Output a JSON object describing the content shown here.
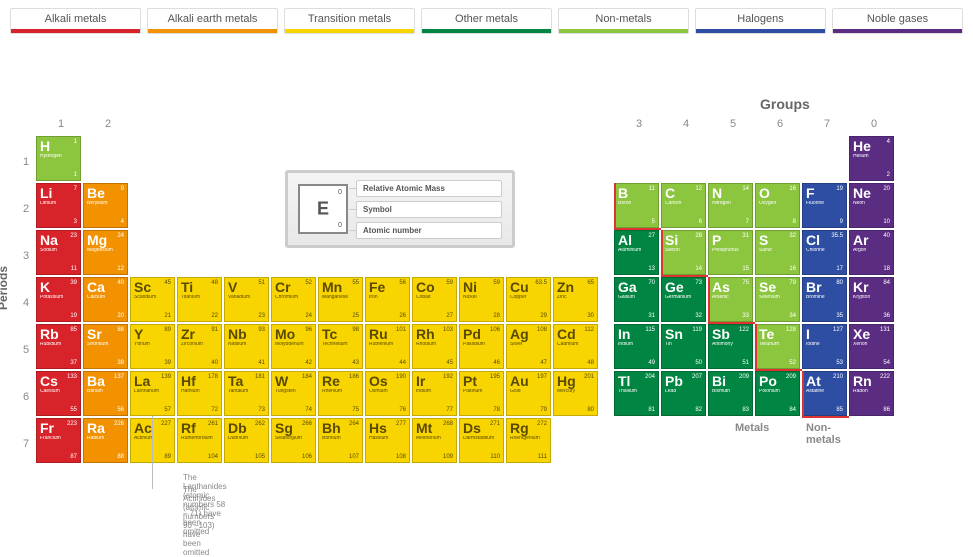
{
  "layout": {
    "cell": 47,
    "gap": 3,
    "startX": 36,
    "startY": 96,
    "rightBlockStart": 12,
    "legendHeight": 42
  },
  "colors": {
    "alkali": "#d8232a",
    "alkaliearth": "#f39200",
    "transition": "#f8d500",
    "other": "#008542",
    "nonmetal": "#8cc63f",
    "halogen": "#2d4ea2",
    "noble": "#5b2d82",
    "bg": "#ffffff",
    "stair": "#d8232a",
    "text": "#666666"
  },
  "legend": [
    {
      "label": "Alkali metals",
      "color": "#d8232a"
    },
    {
      "label": "Alkali earth metals",
      "color": "#f39200"
    },
    {
      "label": "Transition metals",
      "color": "#f8d500"
    },
    {
      "label": "Other metals",
      "color": "#008542"
    },
    {
      "label": "Non-metals",
      "color": "#8cc63f"
    },
    {
      "label": "Halogens",
      "color": "#2d4ea2"
    },
    {
      "label": "Noble gases",
      "color": "#5b2d82"
    }
  ],
  "labels": {
    "groups": "Groups",
    "periods": "Periods",
    "metals": "Metals",
    "nonmetals": "Non-metals"
  },
  "key": {
    "symbol": "E",
    "mass": "0",
    "num": "0",
    "labels": [
      "Relative Atomic Mass",
      "Symbol",
      "Atomic number"
    ]
  },
  "group_numbers": [
    {
      "n": "1",
      "col": 0
    },
    {
      "n": "2",
      "col": 1
    },
    {
      "n": "3",
      "col": 12
    },
    {
      "n": "4",
      "col": 13
    },
    {
      "n": "5",
      "col": 14
    },
    {
      "n": "6",
      "col": 15
    },
    {
      "n": "7",
      "col": 16
    },
    {
      "n": "0",
      "col": 17
    }
  ],
  "period_numbers": [
    "1",
    "2",
    "3",
    "4",
    "5",
    "6",
    "7"
  ],
  "omitted": [
    "The Lanthanides (atomic numbers 58 – 71) have been omitted",
    "The Actinides (atomic numbers 90 –103) have been omitted"
  ],
  "elements": [
    {
      "s": "H",
      "n": "Hydrogen",
      "m": "1",
      "z": "1",
      "r": 0,
      "c": 0,
      "cat": "nonmetal"
    },
    {
      "s": "He",
      "n": "Helium",
      "m": "4",
      "z": "2",
      "r": 0,
      "c": 17,
      "cat": "noble"
    },
    {
      "s": "Li",
      "n": "Lithium",
      "m": "7",
      "z": "3",
      "r": 1,
      "c": 0,
      "cat": "alkali"
    },
    {
      "s": "Be",
      "n": "Beryllium",
      "m": "9",
      "z": "4",
      "r": 1,
      "c": 1,
      "cat": "alkaliearth"
    },
    {
      "s": "B",
      "n": "Boron",
      "m": "11",
      "z": "5",
      "r": 1,
      "c": 12,
      "cat": "nonmetal"
    },
    {
      "s": "C",
      "n": "Carbon",
      "m": "12",
      "z": "6",
      "r": 1,
      "c": 13,
      "cat": "nonmetal"
    },
    {
      "s": "N",
      "n": "Nitrogen",
      "m": "14",
      "z": "7",
      "r": 1,
      "c": 14,
      "cat": "nonmetal"
    },
    {
      "s": "O",
      "n": "Oxygen",
      "m": "16",
      "z": "8",
      "r": 1,
      "c": 15,
      "cat": "nonmetal"
    },
    {
      "s": "F",
      "n": "Fluorine",
      "m": "19",
      "z": "9",
      "r": 1,
      "c": 16,
      "cat": "halogen"
    },
    {
      "s": "Ne",
      "n": "Neon",
      "m": "20",
      "z": "10",
      "r": 1,
      "c": 17,
      "cat": "noble"
    },
    {
      "s": "Na",
      "n": "Sodium",
      "m": "23",
      "z": "11",
      "r": 2,
      "c": 0,
      "cat": "alkali"
    },
    {
      "s": "Mg",
      "n": "Magnesium",
      "m": "24",
      "z": "12",
      "r": 2,
      "c": 1,
      "cat": "alkaliearth"
    },
    {
      "s": "Al",
      "n": "Aluminium",
      "m": "27",
      "z": "13",
      "r": 2,
      "c": 12,
      "cat": "other"
    },
    {
      "s": "Si",
      "n": "Silicon",
      "m": "28",
      "z": "14",
      "r": 2,
      "c": 13,
      "cat": "nonmetal"
    },
    {
      "s": "P",
      "n": "Phosphorus",
      "m": "31",
      "z": "15",
      "r": 2,
      "c": 14,
      "cat": "nonmetal"
    },
    {
      "s": "S",
      "n": "Sulfur",
      "m": "32",
      "z": "16",
      "r": 2,
      "c": 15,
      "cat": "nonmetal"
    },
    {
      "s": "Cl",
      "n": "Chlorine",
      "m": "35.5",
      "z": "17",
      "r": 2,
      "c": 16,
      "cat": "halogen"
    },
    {
      "s": "Ar",
      "n": "Argon",
      "m": "40",
      "z": "18",
      "r": 2,
      "c": 17,
      "cat": "noble"
    },
    {
      "s": "K",
      "n": "Potassium",
      "m": "39",
      "z": "19",
      "r": 3,
      "c": 0,
      "cat": "alkali"
    },
    {
      "s": "Ca",
      "n": "Calcium",
      "m": "40",
      "z": "20",
      "r": 3,
      "c": 1,
      "cat": "alkaliearth"
    },
    {
      "s": "Sc",
      "n": "Scandium",
      "m": "45",
      "z": "21",
      "r": 3,
      "c": 2,
      "cat": "transition"
    },
    {
      "s": "Ti",
      "n": "Titanium",
      "m": "48",
      "z": "22",
      "r": 3,
      "c": 3,
      "cat": "transition"
    },
    {
      "s": "V",
      "n": "Vanadium",
      "m": "51",
      "z": "23",
      "r": 3,
      "c": 4,
      "cat": "transition"
    },
    {
      "s": "Cr",
      "n": "Chromium",
      "m": "52",
      "z": "24",
      "r": 3,
      "c": 5,
      "cat": "transition"
    },
    {
      "s": "Mn",
      "n": "Manganese",
      "m": "55",
      "z": "25",
      "r": 3,
      "c": 6,
      "cat": "transition"
    },
    {
      "s": "Fe",
      "n": "Iron",
      "m": "56",
      "z": "26",
      "r": 3,
      "c": 7,
      "cat": "transition"
    },
    {
      "s": "Co",
      "n": "Cobalt",
      "m": "59",
      "z": "27",
      "r": 3,
      "c": 8,
      "cat": "transition"
    },
    {
      "s": "Ni",
      "n": "Nickel",
      "m": "59",
      "z": "28",
      "r": 3,
      "c": 9,
      "cat": "transition"
    },
    {
      "s": "Cu",
      "n": "Copper",
      "m": "63.5",
      "z": "29",
      "r": 3,
      "c": 10,
      "cat": "transition"
    },
    {
      "s": "Zn",
      "n": "Zinc",
      "m": "65",
      "z": "30",
      "r": 3,
      "c": 11,
      "cat": "transition"
    },
    {
      "s": "Ga",
      "n": "Gallium",
      "m": "70",
      "z": "31",
      "r": 3,
      "c": 12,
      "cat": "other"
    },
    {
      "s": "Ge",
      "n": "Germanium",
      "m": "73",
      "z": "32",
      "r": 3,
      "c": 13,
      "cat": "other"
    },
    {
      "s": "As",
      "n": "Arsenic",
      "m": "75",
      "z": "33",
      "r": 3,
      "c": 14,
      "cat": "nonmetal"
    },
    {
      "s": "Se",
      "n": "Selenium",
      "m": "79",
      "z": "34",
      "r": 3,
      "c": 15,
      "cat": "nonmetal"
    },
    {
      "s": "Br",
      "n": "Bromine",
      "m": "80",
      "z": "35",
      "r": 3,
      "c": 16,
      "cat": "halogen"
    },
    {
      "s": "Kr",
      "n": "Krypton",
      "m": "84",
      "z": "36",
      "r": 3,
      "c": 17,
      "cat": "noble"
    },
    {
      "s": "Rb",
      "n": "Rubidium",
      "m": "85",
      "z": "37",
      "r": 4,
      "c": 0,
      "cat": "alkali"
    },
    {
      "s": "Sr",
      "n": "Strontium",
      "m": "88",
      "z": "38",
      "r": 4,
      "c": 1,
      "cat": "alkaliearth"
    },
    {
      "s": "Y",
      "n": "Yttrium",
      "m": "89",
      "z": "39",
      "r": 4,
      "c": 2,
      "cat": "transition"
    },
    {
      "s": "Zr",
      "n": "Zirconium",
      "m": "91",
      "z": "40",
      "r": 4,
      "c": 3,
      "cat": "transition"
    },
    {
      "s": "Nb",
      "n": "Niobium",
      "m": "93",
      "z": "41",
      "r": 4,
      "c": 4,
      "cat": "transition"
    },
    {
      "s": "Mo",
      "n": "Molybdenum",
      "m": "96",
      "z": "42",
      "r": 4,
      "c": 5,
      "cat": "transition"
    },
    {
      "s": "Tc",
      "n": "Technetium",
      "m": "98",
      "z": "43",
      "r": 4,
      "c": 6,
      "cat": "transition"
    },
    {
      "s": "Ru",
      "n": "Ruthenium",
      "m": "101",
      "z": "44",
      "r": 4,
      "c": 7,
      "cat": "transition"
    },
    {
      "s": "Rh",
      "n": "Rhodium",
      "m": "103",
      "z": "45",
      "r": 4,
      "c": 8,
      "cat": "transition"
    },
    {
      "s": "Pd",
      "n": "Palladium",
      "m": "106",
      "z": "46",
      "r": 4,
      "c": 9,
      "cat": "transition"
    },
    {
      "s": "Ag",
      "n": "Silver",
      "m": "108",
      "z": "47",
      "r": 4,
      "c": 10,
      "cat": "transition"
    },
    {
      "s": "Cd",
      "n": "Cadmium",
      "m": "112",
      "z": "48",
      "r": 4,
      "c": 11,
      "cat": "transition"
    },
    {
      "s": "In",
      "n": "Indium",
      "m": "115",
      "z": "49",
      "r": 4,
      "c": 12,
      "cat": "other"
    },
    {
      "s": "Sn",
      "n": "Tin",
      "m": "119",
      "z": "50",
      "r": 4,
      "c": 13,
      "cat": "other"
    },
    {
      "s": "Sb",
      "n": "Antimony",
      "m": "122",
      "z": "51",
      "r": 4,
      "c": 14,
      "cat": "other"
    },
    {
      "s": "Te",
      "n": "Tellurium",
      "m": "128",
      "z": "52",
      "r": 4,
      "c": 15,
      "cat": "nonmetal"
    },
    {
      "s": "I",
      "n": "Iodine",
      "m": "127",
      "z": "53",
      "r": 4,
      "c": 16,
      "cat": "halogen"
    },
    {
      "s": "Xe",
      "n": "Xenon",
      "m": "131",
      "z": "54",
      "r": 4,
      "c": 17,
      "cat": "noble"
    },
    {
      "s": "Cs",
      "n": "Caesium",
      "m": "133",
      "z": "55",
      "r": 5,
      "c": 0,
      "cat": "alkali"
    },
    {
      "s": "Ba",
      "n": "Barium",
      "m": "137",
      "z": "56",
      "r": 5,
      "c": 1,
      "cat": "alkaliearth"
    },
    {
      "s": "La",
      "n": "Lanthanum",
      "m": "139",
      "z": "57",
      "r": 5,
      "c": 2,
      "cat": "transition"
    },
    {
      "s": "Hf",
      "n": "Hafnium",
      "m": "178",
      "z": "72",
      "r": 5,
      "c": 3,
      "cat": "transition"
    },
    {
      "s": "Ta",
      "n": "Tantalum",
      "m": "181",
      "z": "73",
      "r": 5,
      "c": 4,
      "cat": "transition"
    },
    {
      "s": "W",
      "n": "Tungsten",
      "m": "184",
      "z": "74",
      "r": 5,
      "c": 5,
      "cat": "transition"
    },
    {
      "s": "Re",
      "n": "Rhenium",
      "m": "186",
      "z": "75",
      "r": 5,
      "c": 6,
      "cat": "transition"
    },
    {
      "s": "Os",
      "n": "Osmium",
      "m": "190",
      "z": "76",
      "r": 5,
      "c": 7,
      "cat": "transition"
    },
    {
      "s": "Ir",
      "n": "Iridium",
      "m": "192",
      "z": "77",
      "r": 5,
      "c": 8,
      "cat": "transition"
    },
    {
      "s": "Pt",
      "n": "Platinum",
      "m": "195",
      "z": "78",
      "r": 5,
      "c": 9,
      "cat": "transition"
    },
    {
      "s": "Au",
      "n": "Gold",
      "m": "197",
      "z": "79",
      "r": 5,
      "c": 10,
      "cat": "transition"
    },
    {
      "s": "Hg",
      "n": "Mercury",
      "m": "201",
      "z": "80",
      "r": 5,
      "c": 11,
      "cat": "transition"
    },
    {
      "s": "Tl",
      "n": "Thallium",
      "m": "204",
      "z": "81",
      "r": 5,
      "c": 12,
      "cat": "other"
    },
    {
      "s": "Pb",
      "n": "Lead",
      "m": "207",
      "z": "82",
      "r": 5,
      "c": 13,
      "cat": "other"
    },
    {
      "s": "Bi",
      "n": "Bismuth",
      "m": "209",
      "z": "83",
      "r": 5,
      "c": 14,
      "cat": "other"
    },
    {
      "s": "Po",
      "n": "Polonium",
      "m": "209",
      "z": "84",
      "r": 5,
      "c": 15,
      "cat": "other"
    },
    {
      "s": "At",
      "n": "Astatine",
      "m": "210",
      "z": "85",
      "r": 5,
      "c": 16,
      "cat": "halogen"
    },
    {
      "s": "Rn",
      "n": "Radon",
      "m": "222",
      "z": "86",
      "r": 5,
      "c": 17,
      "cat": "noble"
    },
    {
      "s": "Fr",
      "n": "Francium",
      "m": "223",
      "z": "87",
      "r": 6,
      "c": 0,
      "cat": "alkali"
    },
    {
      "s": "Ra",
      "n": "Radium",
      "m": "226",
      "z": "88",
      "r": 6,
      "c": 1,
      "cat": "alkaliearth"
    },
    {
      "s": "Ac",
      "n": "Actinium",
      "m": "227",
      "z": "89",
      "r": 6,
      "c": 2,
      "cat": "transition"
    },
    {
      "s": "Rf",
      "n": "Rutherfordium",
      "m": "261",
      "z": "104",
      "r": 6,
      "c": 3,
      "cat": "transition"
    },
    {
      "s": "Db",
      "n": "Dubnium",
      "m": "262",
      "z": "105",
      "r": 6,
      "c": 4,
      "cat": "transition"
    },
    {
      "s": "Sg",
      "n": "Seaborgium",
      "m": "266",
      "z": "106",
      "r": 6,
      "c": 5,
      "cat": "transition"
    },
    {
      "s": "Bh",
      "n": "Bohrium",
      "m": "264",
      "z": "107",
      "r": 6,
      "c": 6,
      "cat": "transition"
    },
    {
      "s": "Hs",
      "n": "Hassium",
      "m": "277",
      "z": "108",
      "r": 6,
      "c": 7,
      "cat": "transition"
    },
    {
      "s": "Mt",
      "n": "Meitnerium",
      "m": "268",
      "z": "109",
      "r": 6,
      "c": 8,
      "cat": "transition"
    },
    {
      "s": "Ds",
      "n": "Darmstadtium",
      "m": "271",
      "z": "110",
      "r": 6,
      "c": 9,
      "cat": "transition"
    },
    {
      "s": "Rg",
      "n": "Roentgenium",
      "m": "272",
      "z": "111",
      "r": 6,
      "c": 10,
      "cat": "transition"
    }
  ],
  "stair": [
    {
      "r": 1,
      "c": 12,
      "side": "left-top"
    },
    {
      "r": 2,
      "c": 13,
      "side": "left-top"
    },
    {
      "r": 3,
      "c": 14,
      "side": "left-top"
    },
    {
      "r": 4,
      "c": 15,
      "side": "left-top"
    },
    {
      "r": 5,
      "c": 16,
      "side": "left-top"
    }
  ]
}
